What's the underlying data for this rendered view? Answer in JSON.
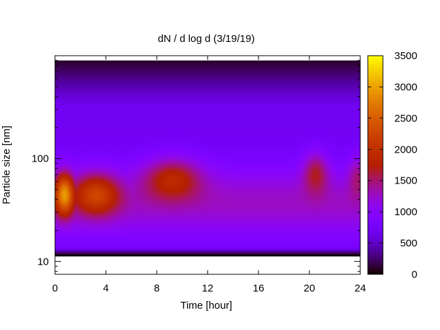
{
  "chart_data": {
    "type": "heatmap",
    "title": "dN / d log d (3/19/19)",
    "xlabel": "Time [hour]",
    "ylabel": "Particle size [nm]",
    "x_range": [
      0,
      24
    ],
    "x_ticks": [
      0,
      4,
      8,
      12,
      16,
      20,
      24
    ],
    "x_tick_labels": [
      "0",
      "4",
      "8",
      "12",
      "16",
      "20",
      "24"
    ],
    "y_scale": "log",
    "y_range_nm": [
      7.5,
      1000
    ],
    "y_ticks": [
      10,
      100
    ],
    "y_tick_labels": [
      "10",
      "100"
    ],
    "data_y_range_nm": [
      11.5,
      900
    ],
    "colorbar": {
      "range": [
        0,
        3500
      ],
      "ticks": [
        0,
        500,
        1000,
        1500,
        2000,
        2500,
        3000,
        3500
      ],
      "tick_labels": [
        "0",
        "500",
        "1000",
        "1500",
        "2000",
        "2500",
        "3000",
        "3500"
      ],
      "palette": "gnuplot"
    },
    "features": [
      {
        "time_h": [
          0,
          1.5
        ],
        "peak_size_nm": 45,
        "peak_value": 3000
      },
      {
        "time_h": [
          1.5,
          5
        ],
        "peak_size_nm": 45,
        "peak_value": 2300
      },
      {
        "time_h": [
          7,
          11.5
        ],
        "peak_size_nm": 65,
        "peak_value": 2100
      },
      {
        "time_h": [
          19.5,
          21.5
        ],
        "peak_size_nm": 75,
        "peak_value": 1950
      },
      {
        "time_h": [
          23.5,
          24
        ],
        "peak_size_nm": 70,
        "peak_value": 1700
      }
    ]
  }
}
